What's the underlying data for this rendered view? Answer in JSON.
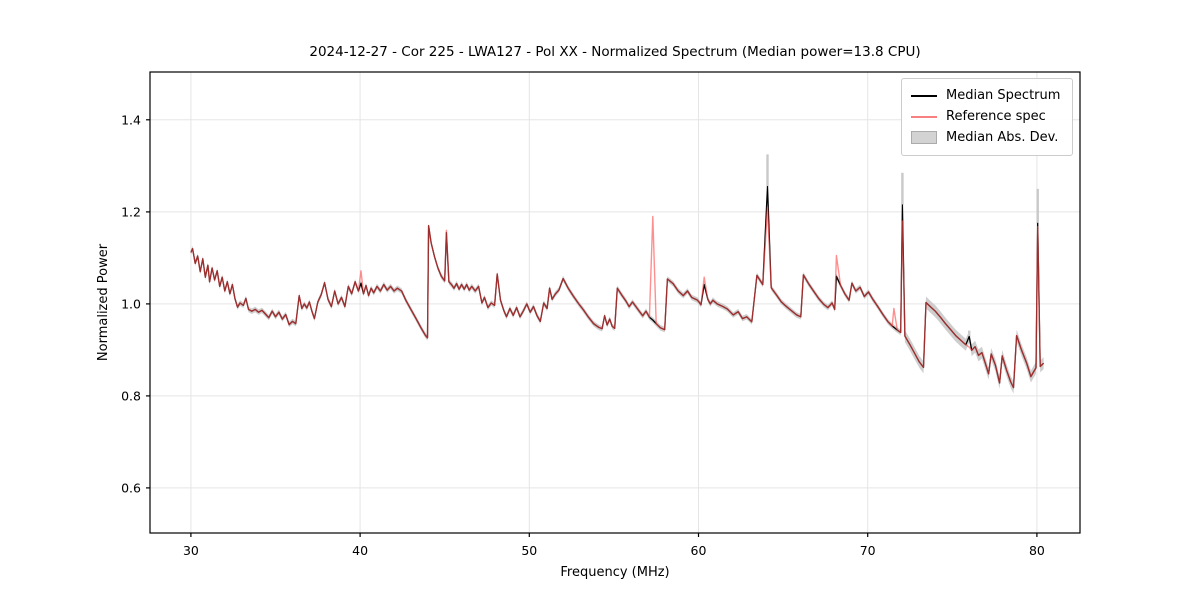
{
  "chart_data": {
    "type": "line",
    "title": "2024-12-27 - Cor 225 - LWA127 - Pol XX - Normalized Spectrum (Median power=13.8 CPU)",
    "xlabel": "Frequency (MHz)",
    "ylabel": "Normalized Power",
    "xlim": [
      27.58,
      82.55
    ],
    "ylim": [
      0.502,
      1.504
    ],
    "xticks": [
      30,
      40,
      50,
      60,
      70,
      80
    ],
    "yticks": [
      0.6,
      0.8,
      1.0,
      1.2,
      1.4
    ],
    "grid": true,
    "legend_position": "upper right",
    "style": {
      "median_color": "#000000",
      "reference_color": "#ff4a4a",
      "reference_opacity": 0.62,
      "mad_color": "#c9c9c9",
      "grid_color": "#e5e5e5",
      "spine_color": "#000000"
    },
    "legend": {
      "entries": [
        {
          "label": "Median Spectrum",
          "swatch": "line",
          "color": "#000000"
        },
        {
          "label": "Reference spec",
          "swatch": "line",
          "color": "#f88080"
        },
        {
          "label": "Median Abs. Dev.",
          "swatch": "patch",
          "color": "#d3d3d3"
        }
      ]
    },
    "series": {
      "median": {
        "name": "Median Spectrum",
        "points": [
          [
            30.0,
            1.112
          ],
          [
            30.1,
            1.12
          ],
          [
            30.25,
            1.088
          ],
          [
            30.4,
            1.104
          ],
          [
            30.55,
            1.07
          ],
          [
            30.7,
            1.098
          ],
          [
            30.85,
            1.058
          ],
          [
            31.0,
            1.084
          ],
          [
            31.1,
            1.048
          ],
          [
            31.25,
            1.078
          ],
          [
            31.4,
            1.052
          ],
          [
            31.55,
            1.072
          ],
          [
            31.7,
            1.038
          ],
          [
            31.85,
            1.058
          ],
          [
            32.0,
            1.028
          ],
          [
            32.15,
            1.048
          ],
          [
            32.3,
            1.022
          ],
          [
            32.45,
            1.042
          ],
          [
            32.6,
            1.012
          ],
          [
            32.75,
            0.993
          ],
          [
            32.9,
            1.002
          ],
          [
            33.1,
            0.997
          ],
          [
            33.25,
            1.012
          ],
          [
            33.4,
            0.988
          ],
          [
            33.6,
            0.984
          ],
          [
            33.8,
            0.988
          ],
          [
            34.0,
            0.982
          ],
          [
            34.2,
            0.986
          ],
          [
            34.4,
            0.978
          ],
          [
            34.6,
            0.97
          ],
          [
            34.8,
            0.984
          ],
          [
            35.0,
            0.972
          ],
          [
            35.2,
            0.982
          ],
          [
            35.4,
            0.967
          ],
          [
            35.6,
            0.977
          ],
          [
            35.8,
            0.955
          ],
          [
            36.0,
            0.962
          ],
          [
            36.2,
            0.957
          ],
          [
            36.4,
            1.018
          ],
          [
            36.55,
            0.99
          ],
          [
            36.7,
            1.0
          ],
          [
            36.85,
            0.991
          ],
          [
            37.0,
            1.004
          ],
          [
            37.15,
            0.984
          ],
          [
            37.3,
            0.968
          ],
          [
            37.5,
            1.004
          ],
          [
            37.7,
            1.02
          ],
          [
            37.9,
            1.046
          ],
          [
            38.1,
            1.01
          ],
          [
            38.3,
            0.994
          ],
          [
            38.5,
            1.028
          ],
          [
            38.7,
            1.0
          ],
          [
            38.9,
            1.014
          ],
          [
            39.1,
            0.994
          ],
          [
            39.3,
            1.038
          ],
          [
            39.5,
            1.022
          ],
          [
            39.7,
            1.048
          ],
          [
            39.9,
            1.028
          ],
          [
            40.05,
            1.045
          ],
          [
            40.2,
            1.022
          ],
          [
            40.35,
            1.04
          ],
          [
            40.5,
            1.018
          ],
          [
            40.65,
            1.034
          ],
          [
            40.8,
            1.024
          ],
          [
            41.0,
            1.038
          ],
          [
            41.2,
            1.028
          ],
          [
            41.4,
            1.042
          ],
          [
            41.6,
            1.03
          ],
          [
            41.8,
            1.038
          ],
          [
            42.0,
            1.028
          ],
          [
            42.2,
            1.034
          ],
          [
            42.45,
            1.028
          ],
          [
            42.7,
            1.008
          ],
          [
            43.0,
            0.988
          ],
          [
            43.3,
            0.968
          ],
          [
            43.6,
            0.948
          ],
          [
            43.85,
            0.932
          ],
          [
            43.98,
            0.926
          ],
          [
            44.05,
            1.17
          ],
          [
            44.2,
            1.132
          ],
          [
            44.4,
            1.102
          ],
          [
            44.6,
            1.078
          ],
          [
            44.8,
            1.06
          ],
          [
            45.0,
            1.05
          ],
          [
            45.1,
            1.155
          ],
          [
            45.25,
            1.048
          ],
          [
            45.4,
            1.042
          ],
          [
            45.55,
            1.034
          ],
          [
            45.7,
            1.044
          ],
          [
            45.85,
            1.032
          ],
          [
            46.0,
            1.042
          ],
          [
            46.15,
            1.032
          ],
          [
            46.3,
            1.042
          ],
          [
            46.45,
            1.03
          ],
          [
            46.6,
            1.038
          ],
          [
            46.8,
            1.028
          ],
          [
            47.0,
            1.038
          ],
          [
            47.2,
            1.002
          ],
          [
            47.35,
            1.014
          ],
          [
            47.55,
            0.992
          ],
          [
            47.75,
            1.002
          ],
          [
            47.95,
            0.997
          ],
          [
            48.1,
            1.065
          ],
          [
            48.3,
            1.008
          ],
          [
            48.5,
            0.985
          ],
          [
            48.65,
            0.972
          ],
          [
            48.85,
            0.99
          ],
          [
            49.05,
            0.975
          ],
          [
            49.25,
            0.992
          ],
          [
            49.45,
            0.972
          ],
          [
            49.65,
            0.985
          ],
          [
            49.85,
            1.0
          ],
          [
            50.05,
            0.982
          ],
          [
            50.25,
            0.994
          ],
          [
            50.45,
            0.975
          ],
          [
            50.65,
            0.962
          ],
          [
            50.85,
            1.002
          ],
          [
            51.05,
            0.99
          ],
          [
            51.2,
            1.034
          ],
          [
            51.35,
            1.01
          ],
          [
            51.55,
            1.022
          ],
          [
            51.75,
            1.03
          ],
          [
            52.0,
            1.055
          ],
          [
            52.3,
            1.034
          ],
          [
            52.6,
            1.017
          ],
          [
            52.9,
            1.001
          ],
          [
            53.2,
            0.987
          ],
          [
            53.5,
            0.971
          ],
          [
            53.8,
            0.957
          ],
          [
            54.1,
            0.949
          ],
          [
            54.3,
            0.946
          ],
          [
            54.45,
            0.974
          ],
          [
            54.6,
            0.954
          ],
          [
            54.75,
            0.967
          ],
          [
            54.9,
            0.951
          ],
          [
            55.05,
            0.947
          ],
          [
            55.2,
            1.034
          ],
          [
            55.45,
            1.02
          ],
          [
            55.7,
            1.007
          ],
          [
            55.9,
            0.994
          ],
          [
            56.1,
            1.004
          ],
          [
            56.3,
            0.994
          ],
          [
            56.5,
            0.984
          ],
          [
            56.7,
            0.974
          ],
          [
            56.9,
            0.984
          ],
          [
            57.1,
            0.971
          ],
          [
            57.3,
            0.965
          ],
          [
            57.5,
            0.957
          ],
          [
            57.75,
            0.948
          ],
          [
            58.0,
            0.944
          ],
          [
            58.16,
            1.054
          ],
          [
            58.5,
            1.044
          ],
          [
            58.8,
            1.028
          ],
          [
            59.1,
            1.018
          ],
          [
            59.35,
            1.028
          ],
          [
            59.6,
            1.014
          ],
          [
            59.95,
            1.008
          ],
          [
            60.15,
            0.998
          ],
          [
            60.34,
            1.042
          ],
          [
            60.55,
            1.01
          ],
          [
            60.7,
            1.0
          ],
          [
            60.85,
            1.008
          ],
          [
            61.1,
            1.0
          ],
          [
            61.4,
            0.995
          ],
          [
            61.7,
            0.989
          ],
          [
            62.05,
            0.976
          ],
          [
            62.35,
            0.983
          ],
          [
            62.6,
            0.968
          ],
          [
            62.85,
            0.972
          ],
          [
            63.15,
            0.961
          ],
          [
            63.45,
            1.062
          ],
          [
            63.8,
            1.042
          ],
          [
            64.08,
            1.255
          ],
          [
            64.3,
            1.035
          ],
          [
            64.6,
            1.02
          ],
          [
            64.9,
            1.004
          ],
          [
            65.2,
            0.994
          ],
          [
            65.5,
            0.985
          ],
          [
            65.8,
            0.976
          ],
          [
            66.05,
            0.972
          ],
          [
            66.2,
            1.063
          ],
          [
            66.5,
            1.044
          ],
          [
            66.8,
            1.028
          ],
          [
            67.1,
            1.012
          ],
          [
            67.4,
            0.999
          ],
          [
            67.65,
            0.992
          ],
          [
            67.9,
            1.002
          ],
          [
            68.05,
            0.988
          ],
          [
            68.15,
            1.06
          ],
          [
            68.4,
            1.04
          ],
          [
            68.65,
            1.022
          ],
          [
            68.9,
            1.008
          ],
          [
            69.07,
            1.045
          ],
          [
            69.3,
            1.028
          ],
          [
            69.55,
            1.036
          ],
          [
            69.8,
            1.016
          ],
          [
            70.05,
            1.026
          ],
          [
            70.3,
            1.01
          ],
          [
            70.6,
            0.994
          ],
          [
            70.9,
            0.977
          ],
          [
            71.2,
            0.961
          ],
          [
            71.45,
            0.952
          ],
          [
            71.55,
            0.949
          ],
          [
            71.75,
            0.943
          ],
          [
            71.95,
            0.938
          ],
          [
            72.05,
            1.215
          ],
          [
            72.2,
            0.93
          ],
          [
            72.5,
            0.911
          ],
          [
            72.8,
            0.891
          ],
          [
            73.05,
            0.874
          ],
          [
            73.3,
            0.862
          ],
          [
            73.45,
            1.003
          ],
          [
            73.7,
            0.994
          ],
          [
            74.0,
            0.984
          ],
          [
            74.3,
            0.971
          ],
          [
            74.6,
            0.957
          ],
          [
            74.9,
            0.944
          ],
          [
            75.2,
            0.931
          ],
          [
            75.5,
            0.921
          ],
          [
            75.8,
            0.911
          ],
          [
            76.0,
            0.929
          ],
          [
            76.15,
            0.899
          ],
          [
            76.35,
            0.907
          ],
          [
            76.55,
            0.888
          ],
          [
            76.75,
            0.894
          ],
          [
            76.95,
            0.871
          ],
          [
            77.15,
            0.848
          ],
          [
            77.3,
            0.891
          ],
          [
            77.55,
            0.867
          ],
          [
            77.8,
            0.828
          ],
          [
            77.95,
            0.887
          ],
          [
            78.2,
            0.857
          ],
          [
            78.45,
            0.831
          ],
          [
            78.62,
            0.818
          ],
          [
            78.8,
            0.931
          ],
          [
            79.1,
            0.899
          ],
          [
            79.4,
            0.871
          ],
          [
            79.65,
            0.842
          ],
          [
            79.8,
            0.852
          ],
          [
            79.95,
            0.861
          ],
          [
            80.05,
            1.175
          ],
          [
            80.2,
            0.864
          ],
          [
            80.4,
            0.871
          ]
        ]
      },
      "reference": {
        "name": "Reference spec",
        "based_on": "median",
        "overrides": [
          [
            40.05,
            1.072
          ],
          [
            45.1,
            1.16
          ],
          [
            57.3,
            1.19
          ],
          [
            60.34,
            1.058
          ],
          [
            64.08,
            1.21
          ],
          [
            68.15,
            1.105
          ],
          [
            71.55,
            0.99
          ],
          [
            72.05,
            1.18
          ],
          [
            76.0,
            0.906
          ],
          [
            80.05,
            1.168
          ]
        ]
      },
      "mad_band": {
        "name": "Median Abs. Dev.",
        "half_width": 0.006,
        "wide_region": [
          72.1,
          80.4
        ],
        "wide_half_width": 0.013,
        "spikes": [
          [
            64.08,
            1.325
          ],
          [
            72.05,
            1.285
          ],
          [
            76.0,
            0.942
          ],
          [
            80.05,
            1.25
          ]
        ]
      }
    }
  }
}
